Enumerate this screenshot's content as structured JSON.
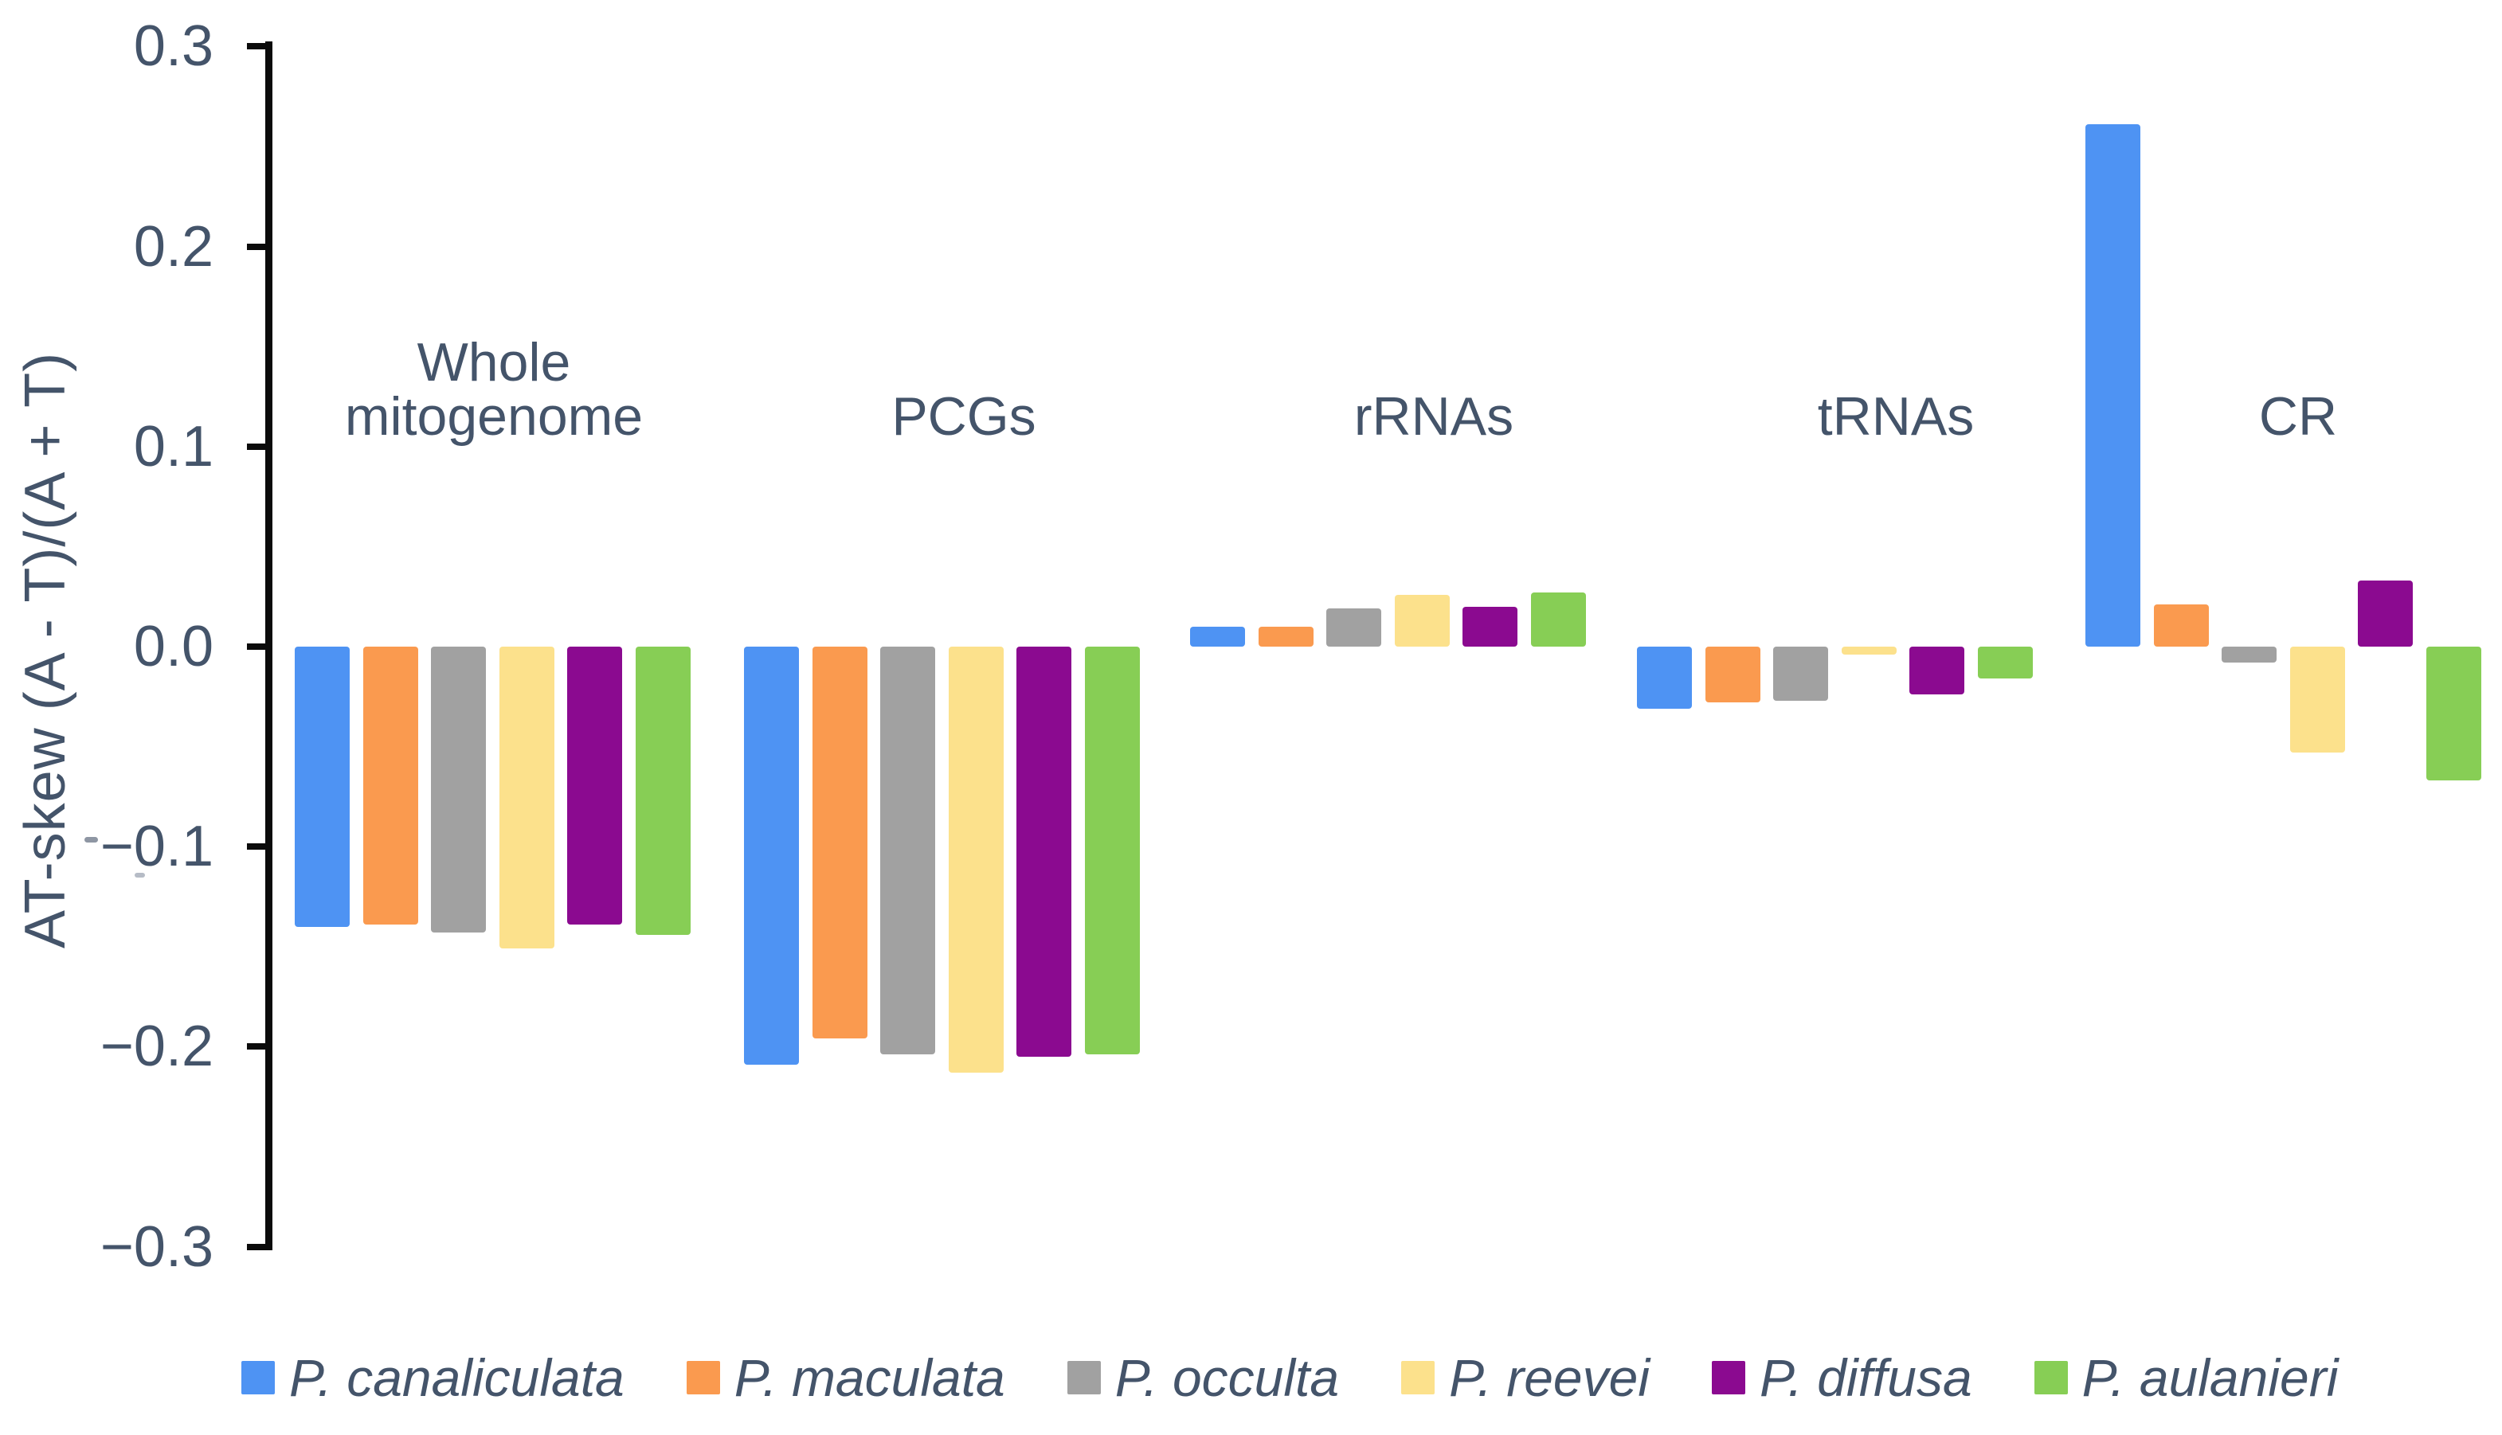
{
  "figure": {
    "ylabel": "AT-skew (A - T)/(A + T)"
  },
  "chart_data": {
    "type": "bar",
    "title": "",
    "xlabel": "",
    "ylabel": "AT-skew (A - T)/(A + T)",
    "ylim": [
      -0.3,
      0.3
    ],
    "grid": false,
    "legend_position": "bottom",
    "yticks": {
      "labels": [
        "0.3",
        "0.2",
        "0.1",
        "0.0",
        "−0.1",
        "−0.2",
        "−0.3"
      ],
      "values": [
        0.3,
        0.2,
        0.1,
        0.0,
        -0.1,
        -0.2,
        -0.3
      ]
    },
    "categories": [
      "Whole mitogenome",
      "PCGs",
      "rRNAs",
      "tRNAs",
      "CR"
    ],
    "category_display": [
      "Whole\nmitogenome",
      "PCGs",
      "rRNAs",
      "tRNAs",
      "CR"
    ],
    "series": [
      {
        "name": "P. canaliculata",
        "color": "#4e93f3",
        "values": [
          -0.14,
          -0.209,
          0.01,
          -0.031,
          0.261
        ]
      },
      {
        "name": "P. maculata",
        "color": "#fa9a4f",
        "values": [
          -0.139,
          -0.196,
          0.01,
          -0.028,
          0.021
        ]
      },
      {
        "name": "P. occulta",
        "color": "#a1a1a1",
        "values": [
          -0.143,
          -0.204,
          0.019,
          -0.027,
          -0.008
        ]
      },
      {
        "name": "P. reevei",
        "color": "#fce18c",
        "values": [
          -0.151,
          -0.213,
          0.026,
          -0.004,
          -0.053
        ]
      },
      {
        "name": "P. diffusa",
        "color": "#8b0a90",
        "values": [
          -0.139,
          -0.205,
          0.02,
          -0.024,
          0.033
        ]
      },
      {
        "name": "P. aulanieri",
        "color": "#87ce55",
        "values": [
          -0.144,
          -0.204,
          0.027,
          -0.016,
          -0.067
        ]
      }
    ]
  }
}
